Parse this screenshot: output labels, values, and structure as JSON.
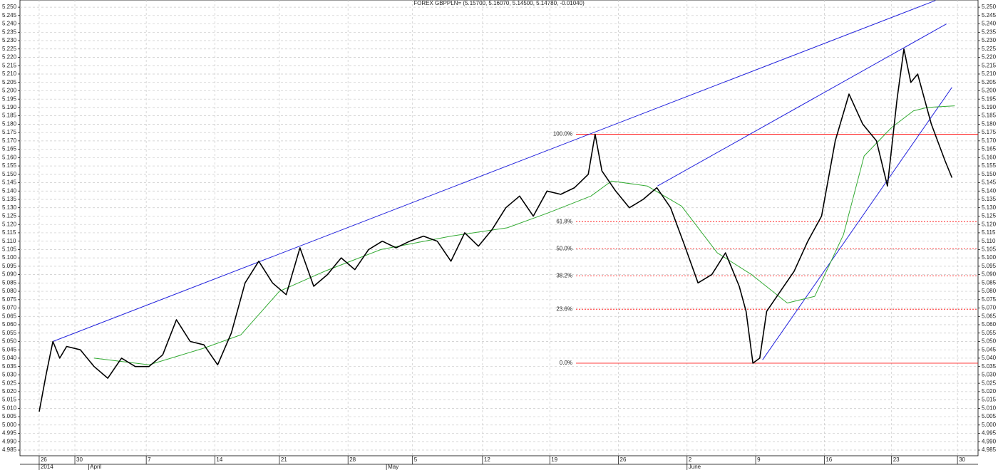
{
  "chart_data": {
    "type": "line",
    "title": "FOREX GBPPLN= (5.15700, 5.16070, 5.14500, 5.14780, -0.01040)",
    "grid": true,
    "xlim": [
      -1.4,
      68.4
    ],
    "ylim": [
      4.9816,
      5.2543
    ],
    "xticks": [
      {
        "value": 0,
        "label": "26"
      },
      {
        "value": 2.6,
        "label": "30"
      },
      {
        "value": 7.8,
        "label": "7"
      },
      {
        "value": 12.8,
        "label": "14"
      },
      {
        "value": 17.5,
        "label": "21"
      },
      {
        "value": 22.5,
        "label": "28"
      },
      {
        "value": 27.2,
        "label": "5"
      },
      {
        "value": 32.3,
        "label": "12"
      },
      {
        "value": 37.2,
        "label": "19"
      },
      {
        "value": 42.2,
        "label": "26"
      },
      {
        "value": 47.2,
        "label": "2"
      },
      {
        "value": 52.2,
        "label": "9"
      },
      {
        "value": 57.2,
        "label": "16"
      },
      {
        "value": 62.1,
        "label": "23"
      },
      {
        "value": 66.9,
        "label": "30"
      }
    ],
    "months": [
      {
        "value": 0,
        "label": "2014"
      },
      {
        "value": 3.6,
        "label": "April"
      },
      {
        "value": 25.3,
        "label": "May"
      },
      {
        "value": 47.2,
        "label": "June"
      }
    ],
    "yticks": [
      4.985,
      {
        "value": 4.99,
        "label": "4.990"
      },
      4.995,
      {
        "value": 5,
        "label": "5.000"
      },
      5.005,
      {
        "value": 5.01,
        "label": "5.010"
      },
      5.015,
      {
        "value": 5.02,
        "label": "5.020"
      },
      5.025,
      {
        "value": 5.03,
        "label": "5.030"
      },
      5.035,
      {
        "value": 5.04,
        "label": "5.040"
      },
      5.045,
      {
        "value": 5.05,
        "label": "5.050"
      },
      5.055,
      {
        "value": 5.06,
        "label": "5.060"
      },
      5.065,
      {
        "value": 5.07,
        "label": "5.070"
      },
      5.075,
      {
        "value": 5.08,
        "label": "5.080"
      },
      5.085,
      {
        "value": 5.09,
        "label": "5.090"
      },
      5.095,
      {
        "value": 5.1,
        "label": "5.100"
      },
      5.105,
      {
        "value": 5.11,
        "label": "5.110"
      },
      5.115,
      {
        "value": 5.12,
        "label": "5.120"
      },
      5.125,
      {
        "value": 5.13,
        "label": "5.130"
      },
      5.135,
      {
        "value": 5.14,
        "label": "5.140"
      },
      5.145,
      {
        "value": 5.15,
        "label": "5.150"
      },
      5.155,
      {
        "value": 5.16,
        "label": "5.160"
      },
      5.165,
      {
        "value": 5.17,
        "label": "5.170"
      },
      5.175,
      {
        "value": 5.18,
        "label": "5.180"
      },
      5.185,
      {
        "value": 5.19,
        "label": "5.190"
      },
      5.195,
      {
        "value": 5.2,
        "label": "5.200"
      },
      5.205,
      {
        "value": 5.21,
        "label": "5.210"
      },
      5.215,
      {
        "value": 5.22,
        "label": "5.220"
      },
      5.225,
      {
        "value": 5.23,
        "label": "5.230"
      },
      5.235,
      {
        "value": 5.24,
        "label": "5.240"
      },
      5.245,
      {
        "value": 5.25,
        "label": "5.250"
      }
    ],
    "series": [
      {
        "color": "#000000",
        "x": [
          0,
          0.5,
          1,
          1.5,
          2,
          3,
          4,
          5,
          6,
          7,
          8,
          9,
          10,
          11,
          12,
          13,
          14,
          15,
          16,
          17,
          18,
          19,
          20,
          21,
          22,
          23,
          24,
          25,
          26,
          27,
          28,
          29,
          30,
          31,
          32,
          33,
          34,
          35,
          36,
          37,
          38,
          39,
          40,
          40.5,
          41,
          42,
          43,
          44,
          45,
          46,
          47,
          48,
          49,
          50,
          51,
          51.5,
          52,
          52.5,
          53,
          54,
          55,
          56,
          57,
          58,
          59,
          60,
          61,
          61.8,
          62.5,
          63,
          63.5,
          64,
          65,
          66,
          66.5
        ],
        "values": [
          5.008,
          5.03,
          5.05,
          5.04,
          5.047,
          5.045,
          5.035,
          5.028,
          5.04,
          5.035,
          5.035,
          5.042,
          5.063,
          5.05,
          5.048,
          5.036,
          5.055,
          5.085,
          5.098,
          5.085,
          5.078,
          5.106,
          5.083,
          5.09,
          5.1,
          5.093,
          5.105,
          5.11,
          5.106,
          5.11,
          5.113,
          5.11,
          5.098,
          5.115,
          5.107,
          5.117,
          5.13,
          5.137,
          5.125,
          5.14,
          5.138,
          5.142,
          5.15,
          5.174,
          5.152,
          5.14,
          5.13,
          5.135,
          5.142,
          5.13,
          5.108,
          5.085,
          5.09,
          5.103,
          5.083,
          5.068,
          5.037,
          5.04,
          5.068,
          5.08,
          5.092,
          5.11,
          5.125,
          5.17,
          5.198,
          5.18,
          5.17,
          5.143,
          5.195,
          5.225,
          5.205,
          5.21,
          5.18,
          5.158,
          5.148
        ]
      },
      {
        "color": "#33aa33",
        "x": [
          4,
          8,
          12,
          14.7,
          17.5,
          20.8,
          24.9,
          30,
          34.1,
          37.1,
          40.2,
          41.7,
          44.3,
          46.8,
          49.4,
          51.9,
          54.5,
          56.5,
          58.6,
          60.1,
          62.1,
          63.7,
          64.7,
          66.7
        ],
        "values": [
          5.04,
          5.036,
          5.046,
          5.054,
          5.08,
          5.092,
          5.105,
          5.113,
          5.118,
          5.127,
          5.137,
          5.146,
          5.143,
          5.131,
          5.103,
          5.09,
          5.073,
          5.077,
          5.114,
          5.161,
          5.178,
          5.188,
          5.19,
          5.191
        ]
      }
    ],
    "trendlines": [
      {
        "color": "#2222dd",
        "x": [
          1,
          65.3
        ],
        "values": [
          5.05,
          5.254
        ]
      },
      {
        "color": "#2222dd",
        "x": [
          45.05,
          66.1
        ],
        "values": [
          5.143,
          5.24
        ]
      },
      {
        "color": "#2222dd",
        "x": [
          52.7,
          66.5
        ],
        "values": [
          5.039,
          5.202
        ]
      }
    ],
    "fibonacci": {
      "color": "#ff0000",
      "levels": [
        {
          "value": 5.174,
          "label": "100.0%"
        },
        {
          "value": 5.1217,
          "label": "61.8%"
        },
        {
          "value": 5.1055,
          "label": "50.0%"
        },
        {
          "value": 5.0893,
          "label": "38.2%"
        },
        {
          "value": 5.0693,
          "label": "23.6%"
        },
        {
          "value": 5.037,
          "label": "0.0%"
        }
      ]
    }
  }
}
